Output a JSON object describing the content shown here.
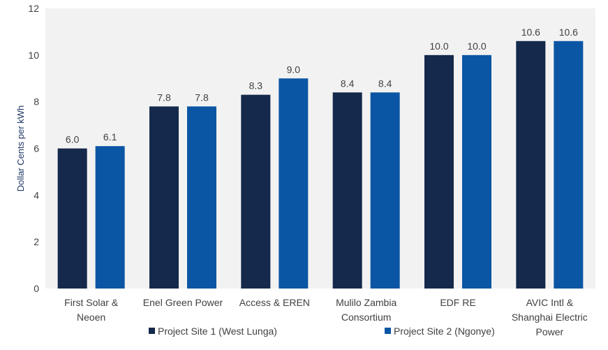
{
  "chart_data": {
    "type": "bar",
    "title": "",
    "xlabel": "",
    "ylabel": "Dollar Cents per kWh",
    "ylim": [
      0,
      12
    ],
    "yticks": [
      0,
      2,
      4,
      6,
      8,
      10,
      12
    ],
    "grid": false,
    "legend_position": "bottom",
    "categories": [
      [
        "First Solar &",
        "Neoen"
      ],
      [
        "Enel Green Power"
      ],
      [
        "Access & EREN"
      ],
      [
        "Mulilo Zambia",
        "Consortium"
      ],
      [
        "EDF RE"
      ],
      [
        "AVIC Intl &",
        "Shanghai Electric",
        "Power"
      ]
    ],
    "series": [
      {
        "name": "Project Site 1 (West Lunga)",
        "color": "#14294b",
        "values": [
          6.0,
          7.8,
          8.3,
          8.4,
          10.0,
          10.6
        ],
        "labels": [
          "6.0",
          "7.8",
          "8.3",
          "8.4",
          "10.0",
          "10.6"
        ]
      },
      {
        "name": "Project Site 2 (Ngonye)",
        "color": "#0b56a4",
        "values": [
          6.1,
          7.8,
          9.0,
          8.4,
          10.0,
          10.6
        ],
        "labels": [
          "6.1",
          "7.8",
          "9.0",
          "8.4",
          "10.0",
          "10.6"
        ]
      }
    ]
  },
  "colors": {
    "plot_background": "#f2f2f2",
    "page_background": "#ffffff"
  }
}
